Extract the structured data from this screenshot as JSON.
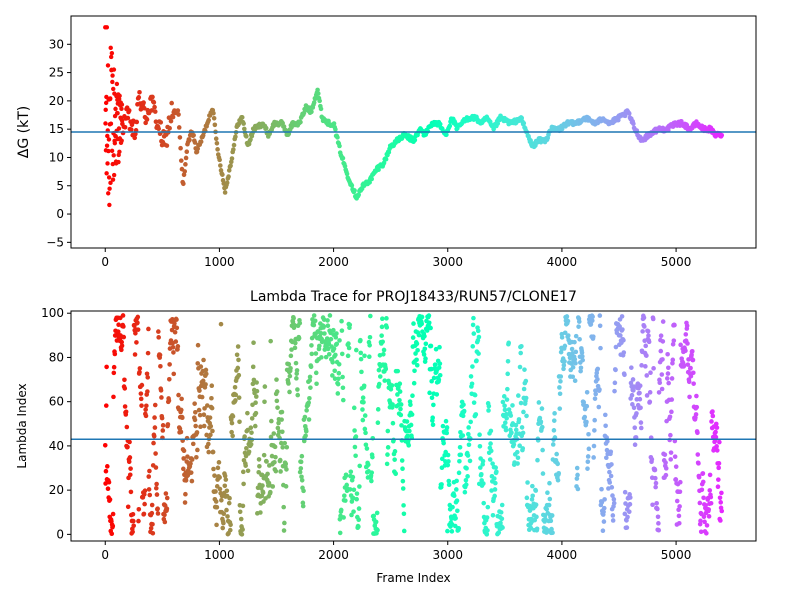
{
  "chart_data": [
    {
      "type": "scatter",
      "title": "",
      "xlabel": "",
      "ylabel": "ΔG (kT)",
      "xlim": [
        -300,
        5700
      ],
      "ylim": [
        -6,
        35
      ],
      "xticks": [
        0,
        1000,
        2000,
        3000,
        4000,
        5000
      ],
      "yticks": [
        -5,
        0,
        5,
        10,
        15,
        20,
        25,
        30
      ],
      "hline": 14.5,
      "hline_color": "#1f77b4",
      "colormap": "rainbow (red at frame 0 to violet at final frame)",
      "frames": 5400,
      "trace_keypoints": [
        [
          150,
          16
        ],
        [
          200,
          17
        ],
        [
          260,
          14
        ],
        [
          300,
          21
        ],
        [
          350,
          17
        ],
        [
          400,
          20
        ],
        [
          460,
          16
        ],
        [
          520,
          12
        ],
        [
          580,
          18
        ],
        [
          640,
          18
        ],
        [
          680,
          5
        ],
        [
          720,
          12
        ],
        [
          760,
          15
        ],
        [
          800,
          11
        ],
        [
          860,
          14
        ],
        [
          940,
          19
        ],
        [
          980,
          12
        ],
        [
          1050,
          4
        ],
        [
          1100,
          9
        ],
        [
          1160,
          16
        ],
        [
          1200,
          17
        ],
        [
          1250,
          12
        ],
        [
          1300,
          15
        ],
        [
          1380,
          16
        ],
        [
          1430,
          14
        ],
        [
          1480,
          16
        ],
        [
          1550,
          16
        ],
        [
          1600,
          14
        ],
        [
          1640,
          16
        ],
        [
          1700,
          16
        ],
        [
          1760,
          19
        ],
        [
          1800,
          18
        ],
        [
          1860,
          22
        ],
        [
          1900,
          17
        ],
        [
          1960,
          16
        ],
        [
          2000,
          16
        ],
        [
          2060,
          11
        ],
        [
          2120,
          7
        ],
        [
          2200,
          3
        ],
        [
          2260,
          5
        ],
        [
          2320,
          6
        ],
        [
          2380,
          8
        ],
        [
          2440,
          9
        ],
        [
          2500,
          12
        ],
        [
          2560,
          13
        ],
        [
          2620,
          14
        ],
        [
          2700,
          13
        ],
        [
          2760,
          15
        ],
        [
          2800,
          14
        ],
        [
          2860,
          16
        ],
        [
          2920,
          16
        ],
        [
          2980,
          14
        ],
        [
          3040,
          17
        ],
        [
          3080,
          15
        ],
        [
          3120,
          16
        ],
        [
          3180,
          17
        ],
        [
          3240,
          17
        ],
        [
          3300,
          16
        ],
        [
          3340,
          17
        ],
        [
          3400,
          15
        ],
        [
          3460,
          17
        ],
        [
          3560,
          16
        ],
        [
          3640,
          17
        ],
        [
          3700,
          14
        ],
        [
          3740,
          12
        ],
        [
          3800,
          13
        ],
        [
          3860,
          13
        ],
        [
          3900,
          15
        ],
        [
          3980,
          15
        ],
        [
          4040,
          16
        ],
        [
          4120,
          16
        ],
        [
          4200,
          17
        ],
        [
          4300,
          16
        ],
        [
          4360,
          17
        ],
        [
          4420,
          16
        ],
        [
          4500,
          17
        ],
        [
          4580,
          18
        ],
        [
          4640,
          15
        ],
        [
          4700,
          13
        ],
        [
          4760,
          14
        ],
        [
          4840,
          15
        ],
        [
          4920,
          15
        ],
        [
          5000,
          16
        ],
        [
          5060,
          16
        ],
        [
          5120,
          15
        ],
        [
          5180,
          16
        ],
        [
          5240,
          15
        ],
        [
          5300,
          15
        ],
        [
          5340,
          14
        ],
        [
          5400,
          14
        ]
      ],
      "early_scatter_range": [
        -3,
        33
      ]
    },
    {
      "type": "scatter",
      "title": "Lambda Trace for PROJ18433/RUN57/CLONE17",
      "xlabel": "Frame Index",
      "ylabel": "Lambda Index",
      "xlim": [
        -300,
        5700
      ],
      "ylim": [
        -3,
        101
      ],
      "xticks": [
        0,
        1000,
        2000,
        3000,
        4000,
        5000
      ],
      "yticks": [
        0,
        20,
        40,
        60,
        80,
        100
      ],
      "hline": 43,
      "hline_color": "#1f77b4",
      "lambda_range": [
        0,
        99
      ],
      "frames": 5400
    }
  ]
}
